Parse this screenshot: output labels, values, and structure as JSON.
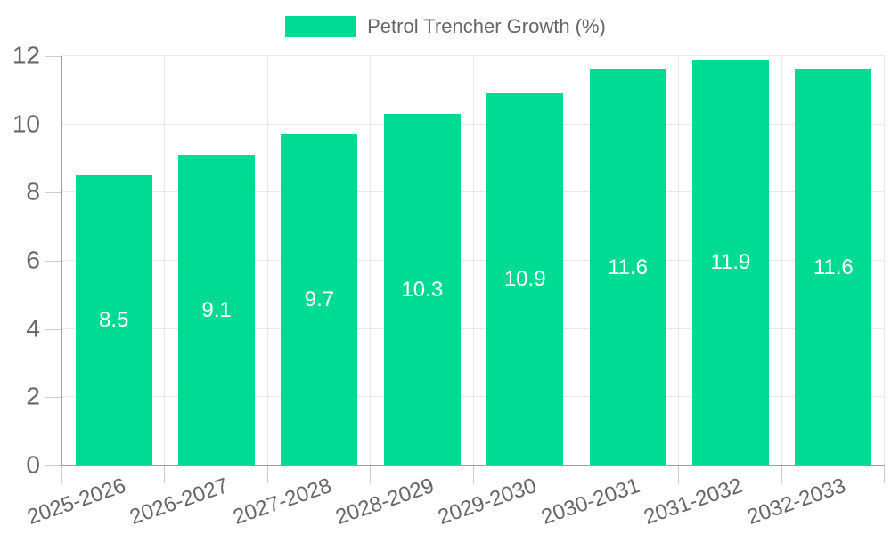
{
  "legend": {
    "label": "Petrol Trencher Growth (%)"
  },
  "chart_data": {
    "type": "bar",
    "title": "Petrol Trencher Growth (%)",
    "legend_position": "top",
    "categories": [
      "2025-2026",
      "2026-2027",
      "2027-2028",
      "2028-2029",
      "2029-2030",
      "2030-2031",
      "2031-2032",
      "2032-2033"
    ],
    "series": [
      {
        "name": "Petrol Trencher Growth (%)",
        "values": [
          8.5,
          9.1,
          9.7,
          10.3,
          10.9,
          11.6,
          11.9,
          11.6
        ]
      }
    ],
    "value_labels": [
      "8.5",
      "9.1",
      "9.7",
      "10.3",
      "10.9",
      "11.6",
      "11.9",
      "11.6"
    ],
    "xlabel": "",
    "ylabel": "",
    "ylim": [
      0,
      12
    ],
    "yticks": [
      0,
      2,
      4,
      6,
      8,
      10,
      12
    ],
    "grid": true,
    "x_tick_rotation_deg": -19
  },
  "colors": {
    "bar": "#00DB93",
    "value_label": "#FFFFFF",
    "grid_line": "#E8E8E8",
    "tick_mark": "#CCCCCC",
    "axis_line": "#9E9E9E",
    "tick_text": "#666666",
    "legend_text": "#666666",
    "background": "#FFFFFF"
  }
}
